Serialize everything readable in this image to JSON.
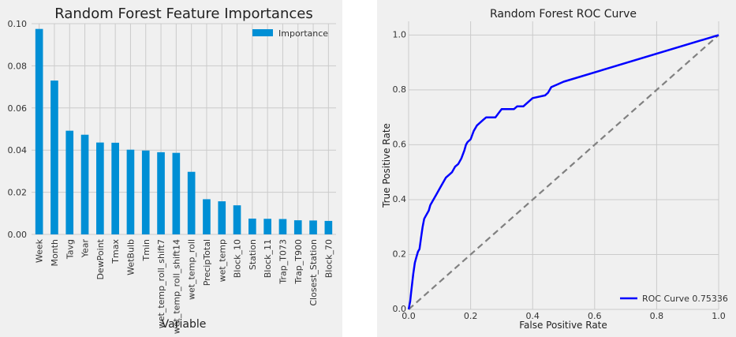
{
  "chart_data": [
    {
      "type": "bar",
      "title": "Random Forest Feature Importances",
      "xlabel": "Variable",
      "ylabel": "",
      "ylim": [
        0,
        0.1
      ],
      "yticks": [
        "0.00",
        "0.02",
        "0.04",
        "0.06",
        "0.08",
        "0.10"
      ],
      "grid": true,
      "legend_position": "top-right",
      "colors": {
        "bar": "#008fd5"
      },
      "categories": [
        "Week",
        "Month",
        "Tavg",
        "Year",
        "DewPoint",
        "Tmax",
        "WetBulb",
        "Tmin",
        "wet_temp_roll_shift7",
        "wet_temp_roll_shift14",
        "wet_temp_roll",
        "PrecipTotal",
        "wet_temp",
        "Block_10",
        "Station",
        "Block_11",
        "Trap_T073",
        "Trap_T900",
        "Closest_Station",
        "Block_70"
      ],
      "series": [
        {
          "name": "Importance",
          "values": [
            0.0975,
            0.073,
            0.0492,
            0.0473,
            0.0436,
            0.0435,
            0.0402,
            0.0398,
            0.039,
            0.0387,
            0.0297,
            0.0167,
            0.0157,
            0.0138,
            0.0075,
            0.0074,
            0.0073,
            0.0067,
            0.0066,
            0.0064
          ]
        }
      ]
    },
    {
      "type": "line",
      "title": "Random Forest ROC Curve",
      "xlabel": "False Positive Rate",
      "ylabel": "True Positive Rate",
      "xlim": [
        0,
        1
      ],
      "ylim": [
        0,
        1.05
      ],
      "xticks": [
        "0.0",
        "0.2",
        "0.4",
        "0.6",
        "0.8",
        "1.0"
      ],
      "yticks": [
        "0.0",
        "0.2",
        "0.4",
        "0.6",
        "0.8",
        "1.0"
      ],
      "grid": true,
      "legend_position": "bottom-right",
      "colors": {
        "roc": "#0000ff",
        "diagonal": "#808080"
      },
      "series": [
        {
          "name": "ROC Curve 0.75336",
          "x": [
            0,
            0.005,
            0.008,
            0.012,
            0.015,
            0.02,
            0.025,
            0.03,
            0.035,
            0.04,
            0.045,
            0.05,
            0.055,
            0.06,
            0.065,
            0.07,
            0.08,
            0.09,
            0.1,
            0.11,
            0.12,
            0.13,
            0.14,
            0.15,
            0.16,
            0.17,
            0.18,
            0.185,
            0.19,
            0.2,
            0.21,
            0.22,
            0.23,
            0.24,
            0.25,
            0.26,
            0.28,
            0.3,
            0.32,
            0.34,
            0.35,
            0.37,
            0.38,
            0.4,
            0.44,
            0.45,
            0.46,
            0.48,
            0.5,
            1.0
          ],
          "y": [
            0,
            0.03,
            0.06,
            0.1,
            0.13,
            0.17,
            0.19,
            0.21,
            0.22,
            0.26,
            0.3,
            0.33,
            0.34,
            0.35,
            0.36,
            0.38,
            0.4,
            0.42,
            0.44,
            0.46,
            0.48,
            0.49,
            0.5,
            0.52,
            0.53,
            0.55,
            0.58,
            0.6,
            0.61,
            0.62,
            0.65,
            0.67,
            0.68,
            0.69,
            0.7,
            0.7,
            0.7,
            0.73,
            0.73,
            0.73,
            0.74,
            0.74,
            0.75,
            0.77,
            0.78,
            0.79,
            0.81,
            0.82,
            0.83,
            1.0
          ]
        },
        {
          "name": "",
          "x": [
            0,
            1
          ],
          "y": [
            0,
            1
          ]
        }
      ]
    }
  ]
}
